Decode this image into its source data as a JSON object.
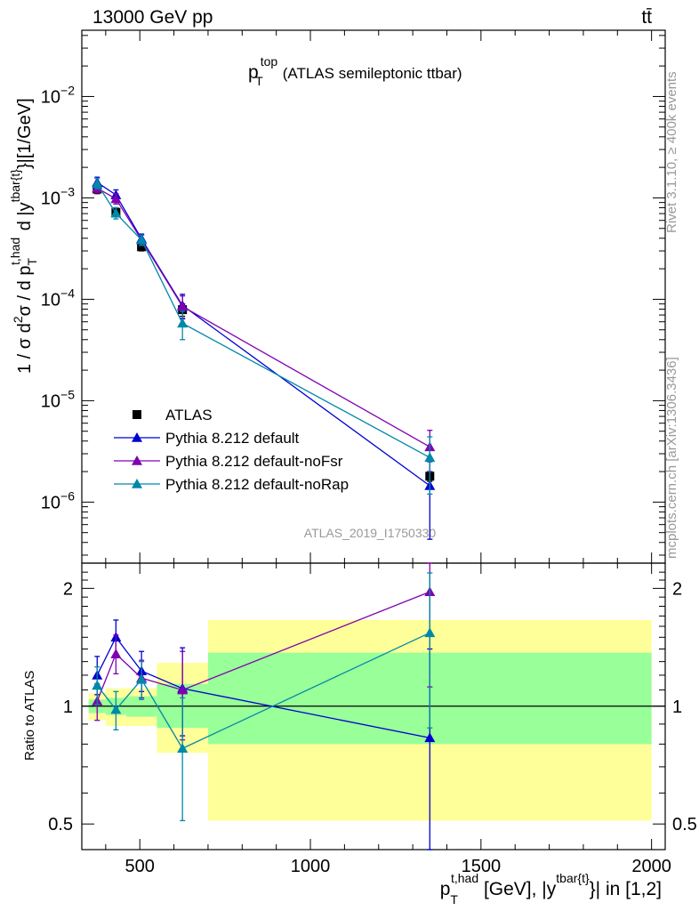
{
  "header": {
    "left": "13000 GeV pp",
    "right": "tt̄"
  },
  "side_labels": {
    "rivet": "Rivet 3.1.10, ≥ 400k events",
    "mcplots": "mcplots.cern.ch [arXiv:1306.3436]"
  },
  "analysis_id": "ATLAS_2019_I1750330",
  "colors": {
    "atlas": "#000000",
    "default": "#0000d0",
    "noFsr": "#8000b0",
    "noRap": "#0088a8",
    "band_stat": "#99ff99",
    "band_total": "#ffff99"
  },
  "chart_data": [
    {
      "type": "scatter",
      "title": "p_T^top (ATLAS semileptonic ttbar)",
      "title_parts": {
        "main": "p",
        "sub": "T",
        "sup": "top",
        "rest": "(ATLAS semileptonic ttbar)"
      },
      "ylabel": "1 / σ d²σ / d p_T^{t,had} d |y^{tbar{t}}| [1/GeV]",
      "yscale": "log",
      "ylim": [
        2.5e-07,
        0.045
      ],
      "xlim": [
        330,
        2040
      ],
      "yticks": [
        {
          "value": 1e-06,
          "base": "10",
          "exp": "−6"
        },
        {
          "value": 1e-05,
          "base": "10",
          "exp": "−5"
        },
        {
          "value": 0.0001,
          "base": "10",
          "exp": "−4"
        },
        {
          "value": 0.001,
          "base": "10",
          "exp": "−3"
        },
        {
          "value": 0.01,
          "base": "10",
          "exp": "−2"
        }
      ],
      "legend": {
        "position": "bottom-left"
      },
      "series": [
        {
          "name": "ATLAS",
          "key": "atlas",
          "marker": "square",
          "points": [
            {
              "x": 375,
              "y": 0.00122,
              "ylo": 0.0011,
              "yhi": 0.00134
            },
            {
              "x": 430,
              "y": 0.00072,
              "ylo": 0.00065,
              "yhi": 0.0008
            },
            {
              "x": 505,
              "y": 0.00033,
              "ylo": 0.0003,
              "yhi": 0.00036
            },
            {
              "x": 625,
              "y": 7.9e-05,
              "ylo": 6.8e-05,
              "yhi": 9e-05
            },
            {
              "x": 1350,
              "y": 1.8e-06,
              "ylo": 1.6e-06,
              "yhi": 2e-06
            }
          ]
        },
        {
          "name": "Pythia 8.212 default",
          "key": "default",
          "marker": "triangle",
          "points": [
            {
              "x": 375,
              "y": 0.00142,
              "ylo": 0.00126,
              "yhi": 0.0016
            },
            {
              "x": 430,
              "y": 0.00107,
              "ylo": 0.00095,
              "yhi": 0.0012
            },
            {
              "x": 505,
              "y": 0.000395,
              "ylo": 0.00035,
              "yhi": 0.00044
            },
            {
              "x": 625,
              "y": 8.7e-05,
              "ylo": 6.5e-05,
              "yhi": 0.000112
            },
            {
              "x": 1350,
              "y": 1.45e-06,
              "ylo": 4.3e-07,
              "yhi": 2.5e-06
            }
          ]
        },
        {
          "name": "Pythia 8.212 default-noFsr",
          "key": "noFsr",
          "marker": "triangle",
          "points": [
            {
              "x": 375,
              "y": 0.00125,
              "ylo": 0.00112,
              "yhi": 0.00139
            },
            {
              "x": 430,
              "y": 0.00098,
              "ylo": 0.00087,
              "yhi": 0.0011
            },
            {
              "x": 505,
              "y": 0.000385,
              "ylo": 0.00034,
              "yhi": 0.00043
            },
            {
              "x": 625,
              "y": 8.5e-05,
              "ylo": 6.4e-05,
              "yhi": 0.000108
            },
            {
              "x": 1350,
              "y": 3.5e-06,
              "ylo": 2e-06,
              "yhi": 5.1e-06
            }
          ]
        },
        {
          "name": "Pythia 8.212 default-noRap",
          "key": "noRap",
          "marker": "triangle",
          "points": [
            {
              "x": 375,
              "y": 0.00138,
              "ylo": 0.00123,
              "yhi": 0.00155
            },
            {
              "x": 430,
              "y": 0.000705,
              "ylo": 0.00062,
              "yhi": 0.0008
            },
            {
              "x": 505,
              "y": 0.000385,
              "ylo": 0.00034,
              "yhi": 0.00043
            },
            {
              "x": 625,
              "y": 5.8e-05,
              "ylo": 4e-05,
              "yhi": 7.6e-05
            },
            {
              "x": 1350,
              "y": 2.75e-06,
              "ylo": 1.2e-06,
              "yhi": 4.4e-06
            }
          ]
        }
      ]
    },
    {
      "type": "scatter",
      "title": "",
      "ylabel": "Ratio to ATLAS",
      "xlabel": "p_T^{t,had} [GeV], |y^{tbar{t}}| in [1,2]",
      "xlabel_parts": {
        "main": "p",
        "sub": "T",
        "sup": "t,had",
        "mid": " [GeV], |y",
        "sup2": "tbar{t}",
        "rest": "}| in [1,2]"
      },
      "yscale": "log",
      "ylim": [
        0.43,
        2.32
      ],
      "xlim": [
        330,
        2040
      ],
      "reference_line": 1.0,
      "xticks": [
        {
          "value": 500,
          "label": "500"
        },
        {
          "value": 1000,
          "label": "1000"
        },
        {
          "value": 1500,
          "label": "1500"
        },
        {
          "value": 2000,
          "label": "2000"
        }
      ],
      "yticks": [
        {
          "value": 0.5,
          "label": "0.5"
        },
        {
          "value": 1,
          "label": "1"
        },
        {
          "value": 2,
          "label": "2"
        }
      ],
      "bins": [
        {
          "xlo": 350,
          "xhi": 400,
          "stat": [
            0.96,
            1.04
          ],
          "total": [
            0.92,
            1.08
          ]
        },
        {
          "xlo": 400,
          "xhi": 460,
          "stat": [
            0.95,
            1.05
          ],
          "total": [
            0.89,
            1.11
          ]
        },
        {
          "xlo": 460,
          "xhi": 550,
          "stat": [
            0.94,
            1.06
          ],
          "total": [
            0.89,
            1.11
          ]
        },
        {
          "xlo": 550,
          "xhi": 700,
          "stat": [
            0.88,
            1.14
          ],
          "total": [
            0.76,
            1.29
          ]
        },
        {
          "xlo": 700,
          "xhi": 2000,
          "stat": [
            0.8,
            1.37
          ],
          "total": [
            0.51,
            1.66
          ]
        }
      ],
      "series": [
        {
          "name": "Pythia 8.212 default",
          "key": "default",
          "points": [
            {
              "x": 375,
              "y": 1.2,
              "ylo": 1.07,
              "yhi": 1.34
            },
            {
              "x": 430,
              "y": 1.5,
              "ylo": 1.33,
              "yhi": 1.66
            },
            {
              "x": 505,
              "y": 1.23,
              "ylo": 1.09,
              "yhi": 1.38
            },
            {
              "x": 625,
              "y": 1.11,
              "ylo": 0.84,
              "yhi": 1.41
            },
            {
              "x": 1350,
              "y": 0.83,
              "ylo": 0.24,
              "yhi": 1.4
            }
          ]
        },
        {
          "name": "Pythia 8.212 default-noFsr",
          "key": "noFsr",
          "points": [
            {
              "x": 375,
              "y": 1.03,
              "ylo": 0.92,
              "yhi": 1.14
            },
            {
              "x": 430,
              "y": 1.36,
              "ylo": 1.21,
              "yhi": 1.52
            },
            {
              "x": 505,
              "y": 1.18,
              "ylo": 1.05,
              "yhi": 1.31
            },
            {
              "x": 625,
              "y": 1.1,
              "ylo": 0.82,
              "yhi": 1.38
            },
            {
              "x": 1350,
              "y": 1.96,
              "ylo": 1.12,
              "yhi": 2.8
            }
          ]
        },
        {
          "name": "Pythia 8.212 default-noRap",
          "key": "noRap",
          "points": [
            {
              "x": 375,
              "y": 1.13,
              "ylo": 1.01,
              "yhi": 1.26
            },
            {
              "x": 430,
              "y": 0.98,
              "ylo": 0.87,
              "yhi": 1.09
            },
            {
              "x": 505,
              "y": 1.17,
              "ylo": 1.04,
              "yhi": 1.3
            },
            {
              "x": 625,
              "y": 0.78,
              "ylo": 0.51,
              "yhi": 1.05
            },
            {
              "x": 1350,
              "y": 1.54,
              "ylo": 0.88,
              "yhi": 2.19
            }
          ]
        }
      ]
    }
  ]
}
